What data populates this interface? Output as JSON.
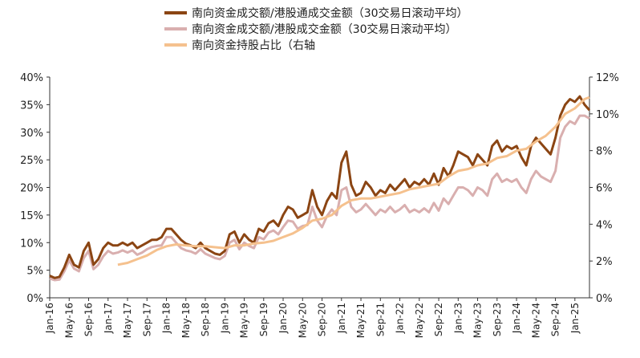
{
  "chart_data": {
    "type": "line",
    "title": "",
    "xlabel": "",
    "ylabel_left": "",
    "ylabel_right": "",
    "legend_position": "top-center",
    "grid": false,
    "x_tick_labels": [
      "Jan-16",
      "May-16",
      "Sep-16",
      "Jan-17",
      "May-17",
      "Sep-17",
      "Jan-18",
      "May-18",
      "Sep-18",
      "Jan-19",
      "May-19",
      "Sep-19",
      "Jan-20",
      "May-20",
      "Sep-20",
      "Jan-21",
      "May-21",
      "Sep-21",
      "Jan-22",
      "May-22",
      "Sep-22",
      "Jan-23",
      "May-23",
      "Sep-23",
      "Jan-24",
      "May-24",
      "Sep-24",
      "Jan-25"
    ],
    "x_range": [
      "2016-01",
      "2025-04"
    ],
    "y_left": {
      "min": 0,
      "max": 40,
      "step": 5,
      "tick_labels": [
        "0%",
        "5%",
        "10%",
        "15%",
        "20%",
        "25%",
        "30%",
        "35%",
        "40%"
      ]
    },
    "y_right": {
      "min": 0,
      "max": 12,
      "step": 2,
      "tick_labels": [
        "0%",
        "2%",
        "4%",
        "6%",
        "8%",
        "10%",
        "12%"
      ]
    },
    "series": [
      {
        "name": "南向资金成交额/港股通成交金额（30交易日滚动平均）",
        "axis": "left",
        "color": "#8B4513",
        "width": 3,
        "points": [
          [
            "2016-01",
            4.0
          ],
          [
            "2016-02",
            3.6
          ],
          [
            "2016-03",
            3.8
          ],
          [
            "2016-04",
            5.5
          ],
          [
            "2016-05",
            7.8
          ],
          [
            "2016-06",
            6.0
          ],
          [
            "2016-07",
            5.5
          ],
          [
            "2016-08",
            8.5
          ],
          [
            "2016-09",
            10.0
          ],
          [
            "2016-10",
            6.0
          ],
          [
            "2016-11",
            7.0
          ],
          [
            "2016-12",
            9.0
          ],
          [
            "2017-01",
            10.0
          ],
          [
            "2017-02",
            9.5
          ],
          [
            "2017-03",
            9.5
          ],
          [
            "2017-04",
            10.0
          ],
          [
            "2017-05",
            9.5
          ],
          [
            "2017-06",
            10.0
          ],
          [
            "2017-07",
            9.0
          ],
          [
            "2017-08",
            9.5
          ],
          [
            "2017-09",
            10.0
          ],
          [
            "2017-10",
            10.5
          ],
          [
            "2017-11",
            10.5
          ],
          [
            "2017-12",
            11.0
          ],
          [
            "2018-01",
            12.5
          ],
          [
            "2018-02",
            12.5
          ],
          [
            "2018-03",
            11.5
          ],
          [
            "2018-04",
            10.5
          ],
          [
            "2018-05",
            9.8
          ],
          [
            "2018-06",
            9.5
          ],
          [
            "2018-07",
            9.0
          ],
          [
            "2018-08",
            10.0
          ],
          [
            "2018-09",
            9.0
          ],
          [
            "2018-10",
            8.5
          ],
          [
            "2018-11",
            8.0
          ],
          [
            "2018-12",
            7.8
          ],
          [
            "2019-01",
            8.5
          ],
          [
            "2019-02",
            11.5
          ],
          [
            "2019-03",
            12.0
          ],
          [
            "2019-04",
            10.0
          ],
          [
            "2019-05",
            11.5
          ],
          [
            "2019-06",
            10.5
          ],
          [
            "2019-07",
            10.0
          ],
          [
            "2019-08",
            12.5
          ],
          [
            "2019-09",
            12.0
          ],
          [
            "2019-10",
            13.5
          ],
          [
            "2019-11",
            14.0
          ],
          [
            "2019-12",
            13.0
          ],
          [
            "2020-01",
            15.0
          ],
          [
            "2020-02",
            16.5
          ],
          [
            "2020-03",
            16.0
          ],
          [
            "2020-04",
            14.5
          ],
          [
            "2020-05",
            15.0
          ],
          [
            "2020-06",
            15.5
          ],
          [
            "2020-07",
            19.5
          ],
          [
            "2020-08",
            16.5
          ],
          [
            "2020-09",
            15.0
          ],
          [
            "2020-10",
            17.5
          ],
          [
            "2020-11",
            19.0
          ],
          [
            "2020-12",
            18.0
          ],
          [
            "2021-01",
            24.5
          ],
          [
            "2021-02",
            26.5
          ],
          [
            "2021-03",
            20.5
          ],
          [
            "2021-04",
            18.5
          ],
          [
            "2021-05",
            19.0
          ],
          [
            "2021-06",
            21.0
          ],
          [
            "2021-07",
            20.0
          ],
          [
            "2021-08",
            18.5
          ],
          [
            "2021-09",
            19.5
          ],
          [
            "2021-10",
            19.0
          ],
          [
            "2021-11",
            20.5
          ],
          [
            "2021-12",
            19.5
          ],
          [
            "2022-01",
            20.5
          ],
          [
            "2022-02",
            21.5
          ],
          [
            "2022-03",
            20.0
          ],
          [
            "2022-04",
            21.0
          ],
          [
            "2022-05",
            20.5
          ],
          [
            "2022-06",
            21.5
          ],
          [
            "2022-07",
            20.5
          ],
          [
            "2022-08",
            22.5
          ],
          [
            "2022-09",
            20.5
          ],
          [
            "2022-10",
            23.5
          ],
          [
            "2022-11",
            22.0
          ],
          [
            "2022-12",
            24.0
          ],
          [
            "2023-01",
            26.5
          ],
          [
            "2023-02",
            26.0
          ],
          [
            "2023-03",
            25.5
          ],
          [
            "2023-04",
            24.0
          ],
          [
            "2023-05",
            26.0
          ],
          [
            "2023-06",
            25.0
          ],
          [
            "2023-07",
            24.0
          ],
          [
            "2023-08",
            27.5
          ],
          [
            "2023-09",
            28.5
          ],
          [
            "2023-10",
            26.5
          ],
          [
            "2023-11",
            27.5
          ],
          [
            "2023-12",
            27.0
          ],
          [
            "2024-01",
            27.5
          ],
          [
            "2024-02",
            25.5
          ],
          [
            "2024-03",
            24.0
          ],
          [
            "2024-04",
            27.5
          ],
          [
            "2024-05",
            29.0
          ],
          [
            "2024-06",
            28.0
          ],
          [
            "2024-07",
            27.0
          ],
          [
            "2024-08",
            26.0
          ],
          [
            "2024-09",
            29.0
          ],
          [
            "2024-10",
            33.0
          ],
          [
            "2024-11",
            35.0
          ],
          [
            "2024-12",
            36.0
          ],
          [
            "2025-01",
            35.5
          ],
          [
            "2025-02",
            36.5
          ],
          [
            "2025-03",
            35.0
          ],
          [
            "2025-04",
            34.0
          ]
        ]
      },
      {
        "name": "南向资金成交额/港股成交金额（30交易日滚动平均）",
        "axis": "left",
        "color": "#D9AFAF",
        "width": 3,
        "points": [
          [
            "2016-01",
            3.5
          ],
          [
            "2016-02",
            3.2
          ],
          [
            "2016-03",
            3.3
          ],
          [
            "2016-04",
            4.8
          ],
          [
            "2016-05",
            6.8
          ],
          [
            "2016-06",
            5.3
          ],
          [
            "2016-07",
            4.8
          ],
          [
            "2016-08",
            7.2
          ],
          [
            "2016-09",
            8.5
          ],
          [
            "2016-10",
            5.2
          ],
          [
            "2016-11",
            6.0
          ],
          [
            "2016-12",
            7.5
          ],
          [
            "2017-01",
            8.5
          ],
          [
            "2017-02",
            8.0
          ],
          [
            "2017-03",
            8.2
          ],
          [
            "2017-04",
            8.6
          ],
          [
            "2017-05",
            8.2
          ],
          [
            "2017-06",
            8.6
          ],
          [
            "2017-07",
            7.8
          ],
          [
            "2017-08",
            8.2
          ],
          [
            "2017-09",
            8.8
          ],
          [
            "2017-10",
            9.2
          ],
          [
            "2017-11",
            9.4
          ],
          [
            "2017-12",
            9.5
          ],
          [
            "2018-01",
            11.0
          ],
          [
            "2018-02",
            11.0
          ],
          [
            "2018-03",
            10.0
          ],
          [
            "2018-04",
            9.0
          ],
          [
            "2018-05",
            8.6
          ],
          [
            "2018-06",
            8.4
          ],
          [
            "2018-07",
            8.0
          ],
          [
            "2018-08",
            8.8
          ],
          [
            "2018-09",
            8.0
          ],
          [
            "2018-10",
            7.6
          ],
          [
            "2018-11",
            7.2
          ],
          [
            "2018-12",
            7.0
          ],
          [
            "2019-01",
            7.6
          ],
          [
            "2019-02",
            10.0
          ],
          [
            "2019-03",
            10.5
          ],
          [
            "2019-04",
            8.8
          ],
          [
            "2019-05",
            10.0
          ],
          [
            "2019-06",
            9.4
          ],
          [
            "2019-07",
            9.0
          ],
          [
            "2019-08",
            11.0
          ],
          [
            "2019-09",
            10.6
          ],
          [
            "2019-10",
            11.8
          ],
          [
            "2019-11",
            12.2
          ],
          [
            "2019-12",
            11.5
          ],
          [
            "2020-01",
            12.8
          ],
          [
            "2020-02",
            14.0
          ],
          [
            "2020-03",
            13.8
          ],
          [
            "2020-04",
            12.5
          ],
          [
            "2020-05",
            13.0
          ],
          [
            "2020-06",
            13.2
          ],
          [
            "2020-07",
            16.5
          ],
          [
            "2020-08",
            14.0
          ],
          [
            "2020-09",
            12.8
          ],
          [
            "2020-10",
            14.8
          ],
          [
            "2020-11",
            16.0
          ],
          [
            "2020-12",
            15.0
          ],
          [
            "2021-01",
            19.5
          ],
          [
            "2021-02",
            20.0
          ],
          [
            "2021-03",
            16.5
          ],
          [
            "2021-04",
            15.5
          ],
          [
            "2021-05",
            16.0
          ],
          [
            "2021-06",
            17.0
          ],
          [
            "2021-07",
            16.0
          ],
          [
            "2021-08",
            15.0
          ],
          [
            "2021-09",
            16.0
          ],
          [
            "2021-10",
            15.5
          ],
          [
            "2021-11",
            16.5
          ],
          [
            "2021-12",
            15.5
          ],
          [
            "2022-01",
            16.0
          ],
          [
            "2022-02",
            16.8
          ],
          [
            "2022-03",
            15.5
          ],
          [
            "2022-04",
            16.0
          ],
          [
            "2022-05",
            15.5
          ],
          [
            "2022-06",
            16.2
          ],
          [
            "2022-07",
            15.5
          ],
          [
            "2022-08",
            17.2
          ],
          [
            "2022-09",
            15.8
          ],
          [
            "2022-10",
            18.0
          ],
          [
            "2022-11",
            17.0
          ],
          [
            "2022-12",
            18.5
          ],
          [
            "2023-01",
            20.0
          ],
          [
            "2023-02",
            20.0
          ],
          [
            "2023-03",
            19.5
          ],
          [
            "2023-04",
            18.5
          ],
          [
            "2023-05",
            20.0
          ],
          [
            "2023-06",
            19.5
          ],
          [
            "2023-07",
            18.5
          ],
          [
            "2023-08",
            21.5
          ],
          [
            "2023-09",
            22.5
          ],
          [
            "2023-10",
            21.0
          ],
          [
            "2023-11",
            21.5
          ],
          [
            "2023-12",
            21.0
          ],
          [
            "2024-01",
            21.5
          ],
          [
            "2024-02",
            20.0
          ],
          [
            "2024-03",
            19.0
          ],
          [
            "2024-04",
            21.5
          ],
          [
            "2024-05",
            23.0
          ],
          [
            "2024-06",
            22.0
          ],
          [
            "2024-07",
            21.5
          ],
          [
            "2024-08",
            21.0
          ],
          [
            "2024-09",
            23.0
          ],
          [
            "2024-10",
            29.0
          ],
          [
            "2024-11",
            31.0
          ],
          [
            "2024-12",
            32.0
          ],
          [
            "2025-01",
            31.5
          ],
          [
            "2025-02",
            33.0
          ],
          [
            "2025-03",
            33.0
          ],
          [
            "2025-04",
            32.5
          ]
        ]
      },
      {
        "name": "南向资金持股占比（右轴",
        "axis": "right",
        "color": "#F5C18E",
        "width": 3,
        "points": [
          [
            "2017-03",
            1.8
          ],
          [
            "2017-05",
            1.9
          ],
          [
            "2017-07",
            2.1
          ],
          [
            "2017-09",
            2.3
          ],
          [
            "2017-11",
            2.6
          ],
          [
            "2018-01",
            2.8
          ],
          [
            "2018-03",
            2.9
          ],
          [
            "2018-05",
            2.85
          ],
          [
            "2018-07",
            2.8
          ],
          [
            "2018-09",
            2.8
          ],
          [
            "2018-11",
            2.75
          ],
          [
            "2019-01",
            2.7
          ],
          [
            "2019-03",
            2.85
          ],
          [
            "2019-05",
            2.85
          ],
          [
            "2019-07",
            2.95
          ],
          [
            "2019-09",
            3.0
          ],
          [
            "2019-11",
            3.1
          ],
          [
            "2020-01",
            3.3
          ],
          [
            "2020-03",
            3.5
          ],
          [
            "2020-05",
            3.8
          ],
          [
            "2020-07",
            4.2
          ],
          [
            "2020-09",
            4.3
          ],
          [
            "2020-11",
            4.5
          ],
          [
            "2021-01",
            5.0
          ],
          [
            "2021-03",
            5.3
          ],
          [
            "2021-05",
            5.4
          ],
          [
            "2021-07",
            5.4
          ],
          [
            "2021-09",
            5.5
          ],
          [
            "2021-11",
            5.6
          ],
          [
            "2022-01",
            5.7
          ],
          [
            "2022-03",
            5.9
          ],
          [
            "2022-05",
            6.0
          ],
          [
            "2022-07",
            6.1
          ],
          [
            "2022-09",
            6.2
          ],
          [
            "2022-11",
            6.6
          ],
          [
            "2023-01",
            6.9
          ],
          [
            "2023-03",
            7.0
          ],
          [
            "2023-05",
            7.2
          ],
          [
            "2023-07",
            7.3
          ],
          [
            "2023-09",
            7.6
          ],
          [
            "2023-11",
            7.7
          ],
          [
            "2024-01",
            8.0
          ],
          [
            "2024-03",
            8.1
          ],
          [
            "2024-05",
            8.5
          ],
          [
            "2024-07",
            8.8
          ],
          [
            "2024-09",
            9.3
          ],
          [
            "2024-11",
            10.0
          ],
          [
            "2025-01",
            10.3
          ],
          [
            "2025-03",
            10.8
          ],
          [
            "2025-04",
            10.9
          ]
        ]
      }
    ]
  }
}
